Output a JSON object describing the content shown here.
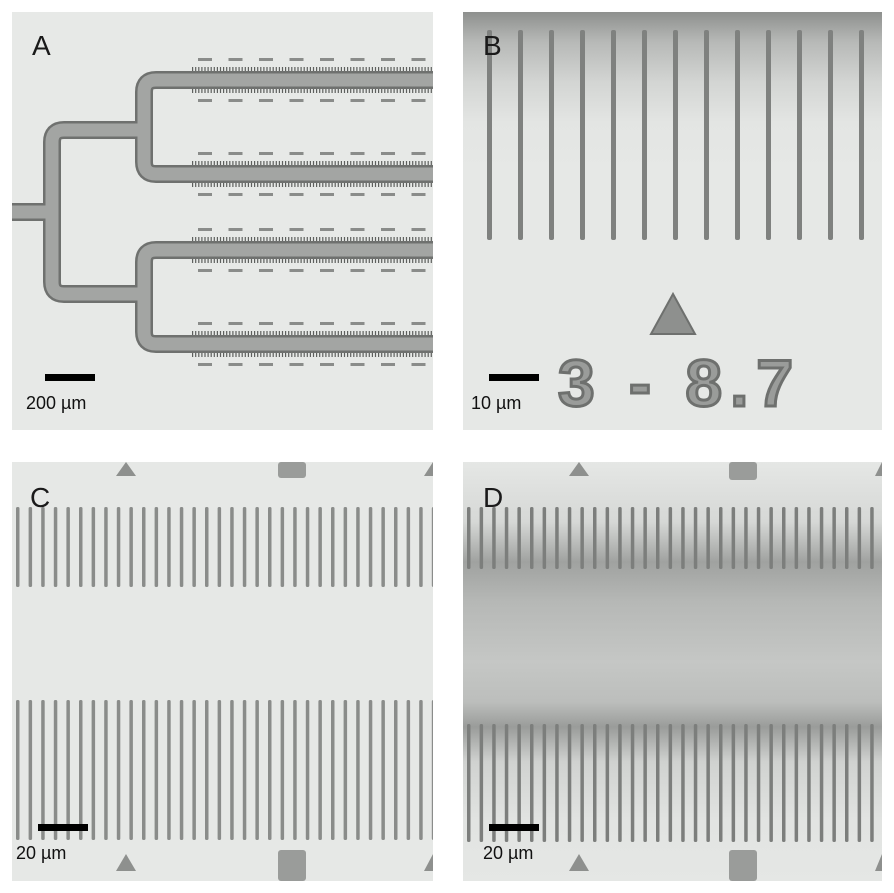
{
  "panels": [
    {
      "id": "A",
      "label": "A",
      "scale": "200 µm"
    },
    {
      "id": "B",
      "label": "B",
      "scale": "10 µm",
      "chip_label": "3 - 8.7"
    },
    {
      "id": "C",
      "label": "C",
      "scale": "20 µm"
    },
    {
      "id": "D",
      "label": "D",
      "scale": "20 µm"
    }
  ],
  "colors": {
    "background": "#e6e8e6",
    "channel": "#9c9e9c",
    "channel_edge": "#6e706e",
    "feature": "#777977"
  }
}
